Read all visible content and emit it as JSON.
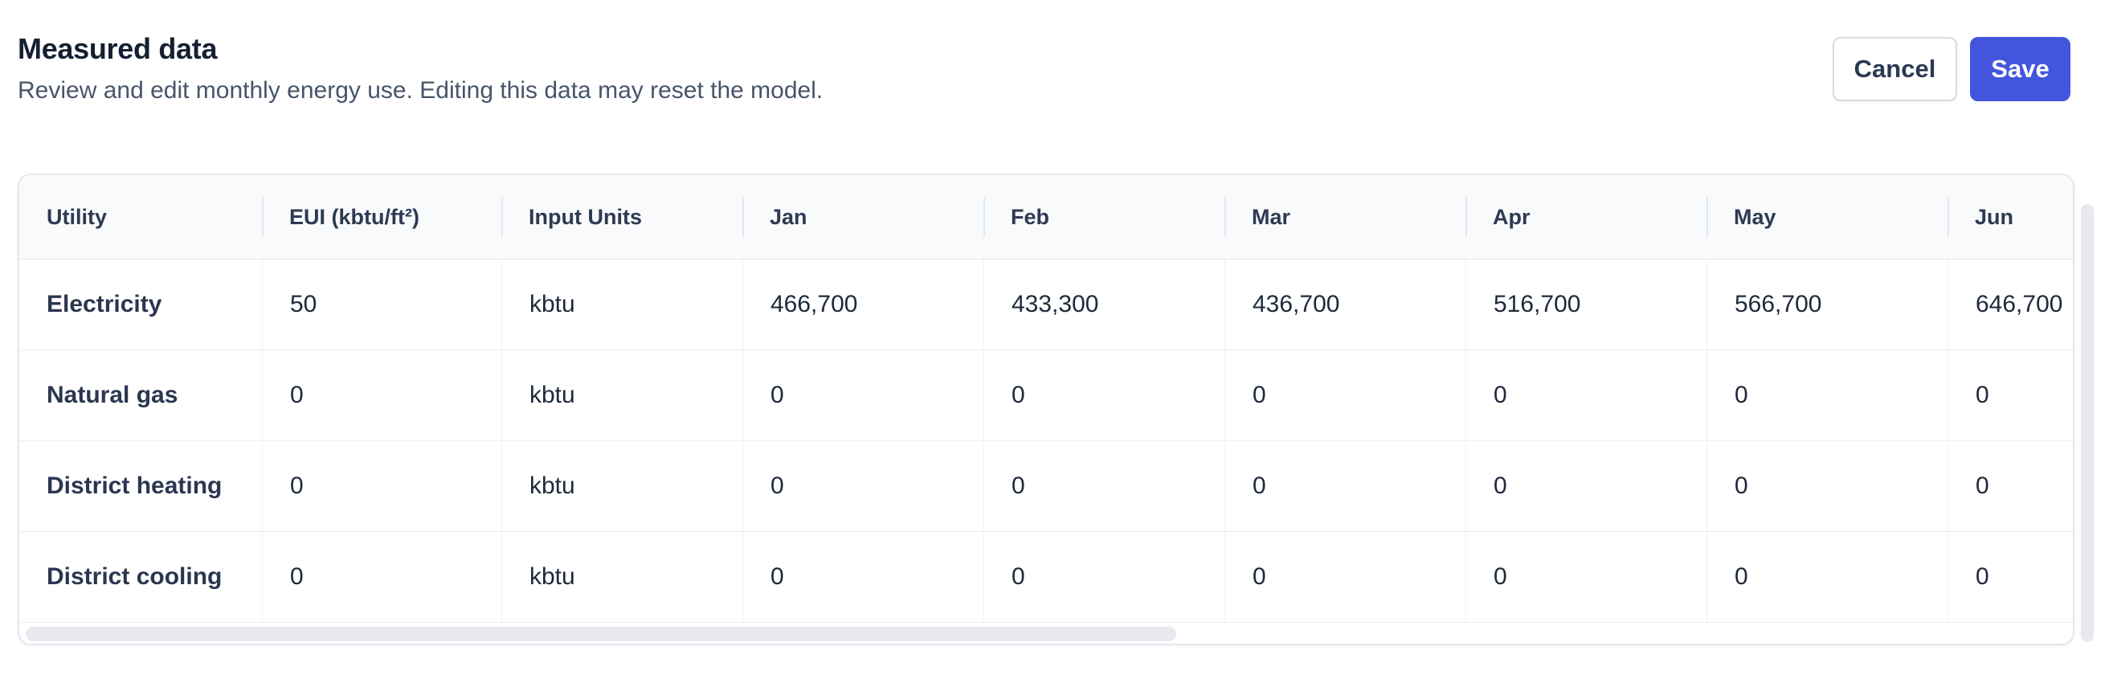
{
  "header": {
    "title": "Measured data",
    "subtitle": "Review and edit monthly energy use. Editing this data may reset the model.",
    "cancel_label": "Cancel",
    "save_label": "Save"
  },
  "table": {
    "columns": [
      "Utility",
      "EUI (kbtu/ft²)",
      "Input Units",
      "Jan",
      "Feb",
      "Mar",
      "Apr",
      "May",
      "Jun"
    ],
    "rows": [
      {
        "utility": "Electricity",
        "eui": "50",
        "units": "kbtu",
        "values": [
          "466,700",
          "433,300",
          "436,700",
          "516,700",
          "566,700",
          "646,700"
        ]
      },
      {
        "utility": "Natural gas",
        "eui": "0",
        "units": "kbtu",
        "values": [
          "0",
          "0",
          "0",
          "0",
          "0",
          "0"
        ]
      },
      {
        "utility": "District heating",
        "eui": "0",
        "units": "kbtu",
        "values": [
          "0",
          "0",
          "0",
          "0",
          "0",
          "0"
        ]
      },
      {
        "utility": "District cooling",
        "eui": "0",
        "units": "kbtu",
        "values": [
          "0",
          "0",
          "0",
          "0",
          "0",
          "0"
        ]
      }
    ]
  },
  "colors": {
    "accent": "#4355DC",
    "header_bg": "#F8FAFC",
    "card_border": "#E3E8EF",
    "row_border": "#E9EEF3",
    "text_dark": "#1E293B",
    "text_muted": "#475569",
    "scrollbar": "#E7E9EF"
  }
}
